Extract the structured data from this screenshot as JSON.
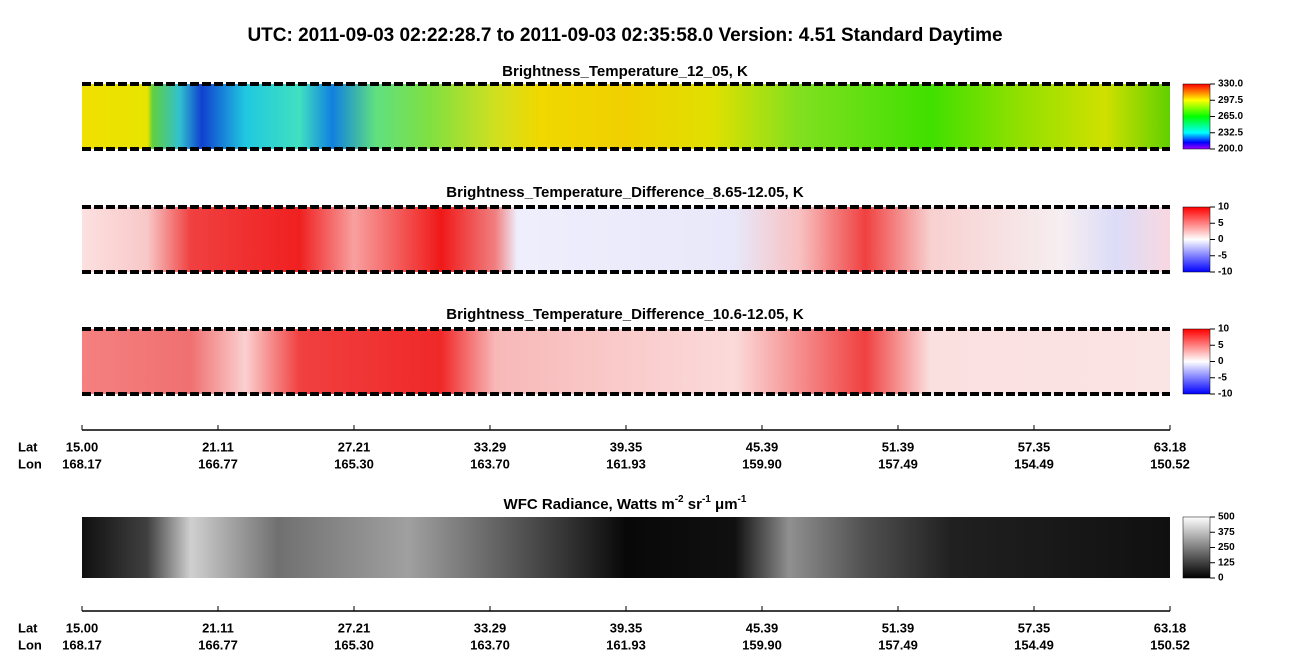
{
  "header": {
    "title": "UTC:  2011-09-03   02:22:28.7  to  2011-09-03   02:35:58.0    Version: 4.51  Standard Daytime"
  },
  "panels": [
    {
      "title": "Brightness_Temperature_12_05, K",
      "colorbar": [
        "330.0",
        "297.5",
        "265.0",
        "232.5",
        "200.0"
      ]
    },
    {
      "title": "Brightness_Temperature_Difference_8.65-12.05, K",
      "colorbar": [
        "10",
        "5",
        "0",
        "-5",
        "-10"
      ]
    },
    {
      "title": "Brightness_Temperature_Difference_10.6-12.05, K",
      "colorbar": [
        "10",
        "5",
        "0",
        "-5",
        "-10"
      ]
    },
    {
      "title_parts": [
        "WFC Radiance, Watts m",
        "-2",
        " sr",
        "-1",
        " μm",
        "-1"
      ],
      "colorbar": [
        "500",
        "375",
        "250",
        "125",
        "0"
      ]
    }
  ],
  "axis": {
    "lat_label": "Lat",
    "lon_label": "Lon",
    "lat": [
      "15.00",
      "21.11",
      "27.21",
      "33.29",
      "39.35",
      "45.39",
      "51.39",
      "57.35",
      "63.18"
    ],
    "lon": [
      "168.17",
      "166.77",
      "165.30",
      "163.70",
      "161.93",
      "159.90",
      "157.49",
      "154.49",
      "150.52"
    ]
  }
}
